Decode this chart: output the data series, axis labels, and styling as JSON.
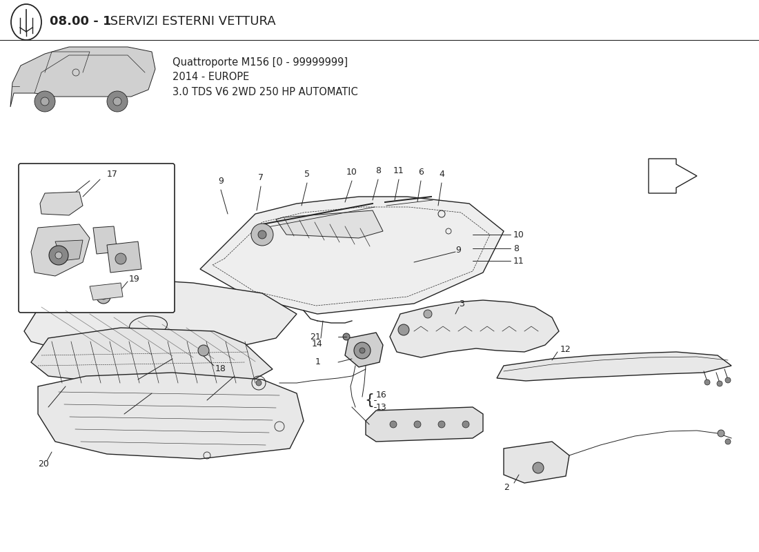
{
  "title_bold": "08.00 - 1",
  "title_normal": " SERVIZI ESTERNI VETTURA",
  "subtitle_line1": "Quattroporte M156 [0 - 99999999]",
  "subtitle_line2": "2014 - EUROPE",
  "subtitle_line3": "3.0 TDS V6 2WD 250 HP AUTOMATIC",
  "bg_color": "#ffffff",
  "line_color": "#222222",
  "fig_w": 11.0,
  "fig_h": 8.0,
  "dpi": 100
}
